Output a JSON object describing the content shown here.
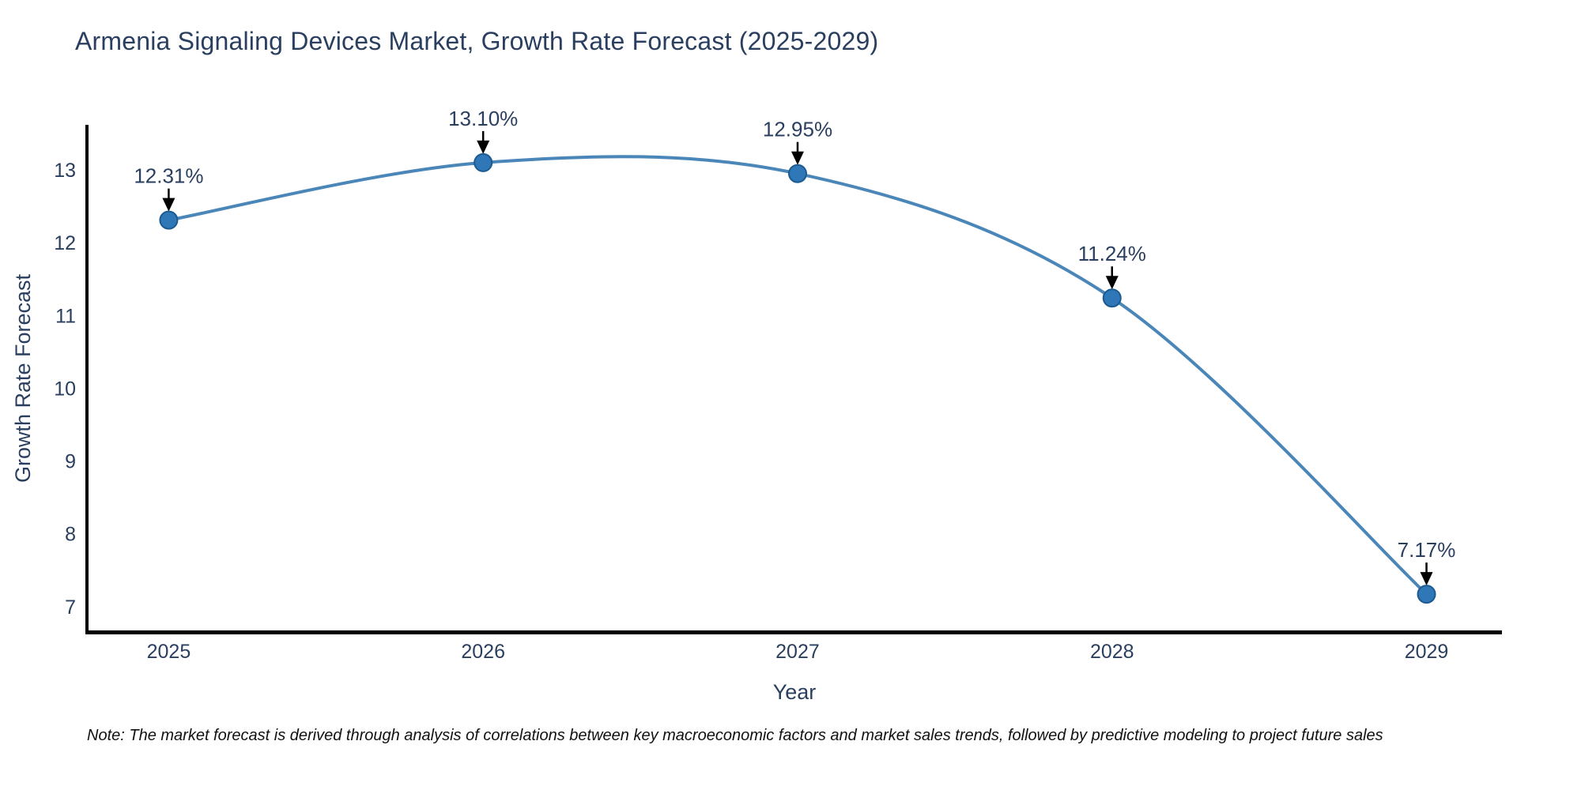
{
  "page": {
    "background": "#ffffff"
  },
  "chart": {
    "title": "Armenia Signaling Devices Market, Growth Rate Forecast (2025-2029)",
    "note": "Note: The market forecast is derived through analysis of correlations between key macroeconomic factors and market sales trends, followed by predictive modeling to project future sales",
    "colors": {
      "line": "#4a86b8",
      "marker_fill": "#2f77b6",
      "marker_edge": "#1d5a8f",
      "axis_text": "#2a3f5f",
      "annotation_text": "#2a3f5f",
      "arrow": "#000000",
      "spine": "#000000",
      "background": "#ffffff"
    }
  },
  "chart_data": {
    "type": "line",
    "line_shape": "spline",
    "markers": true,
    "grid": false,
    "title": "Armenia Signaling Devices Market, Growth Rate Forecast (2025-2029)",
    "xlabel": "Year",
    "ylabel": "Growth Rate Forecast",
    "x": [
      2025,
      2026,
      2027,
      2028,
      2029
    ],
    "values": [
      12.31,
      13.1,
      12.95,
      11.24,
      7.17
    ],
    "point_labels": [
      "12.31%",
      "13.10%",
      "12.95%",
      "11.24%",
      "7.17%"
    ],
    "annotation_style": "label-above-with-down-arrow",
    "xticks": [
      "2025",
      "2026",
      "2027",
      "2028",
      "2029"
    ],
    "yticks": [
      7,
      8,
      9,
      10,
      11,
      12,
      13
    ],
    "xlim": [
      2024.74,
      2029.24
    ],
    "ylim": [
      6.65,
      13.62
    ],
    "legend": "none"
  }
}
